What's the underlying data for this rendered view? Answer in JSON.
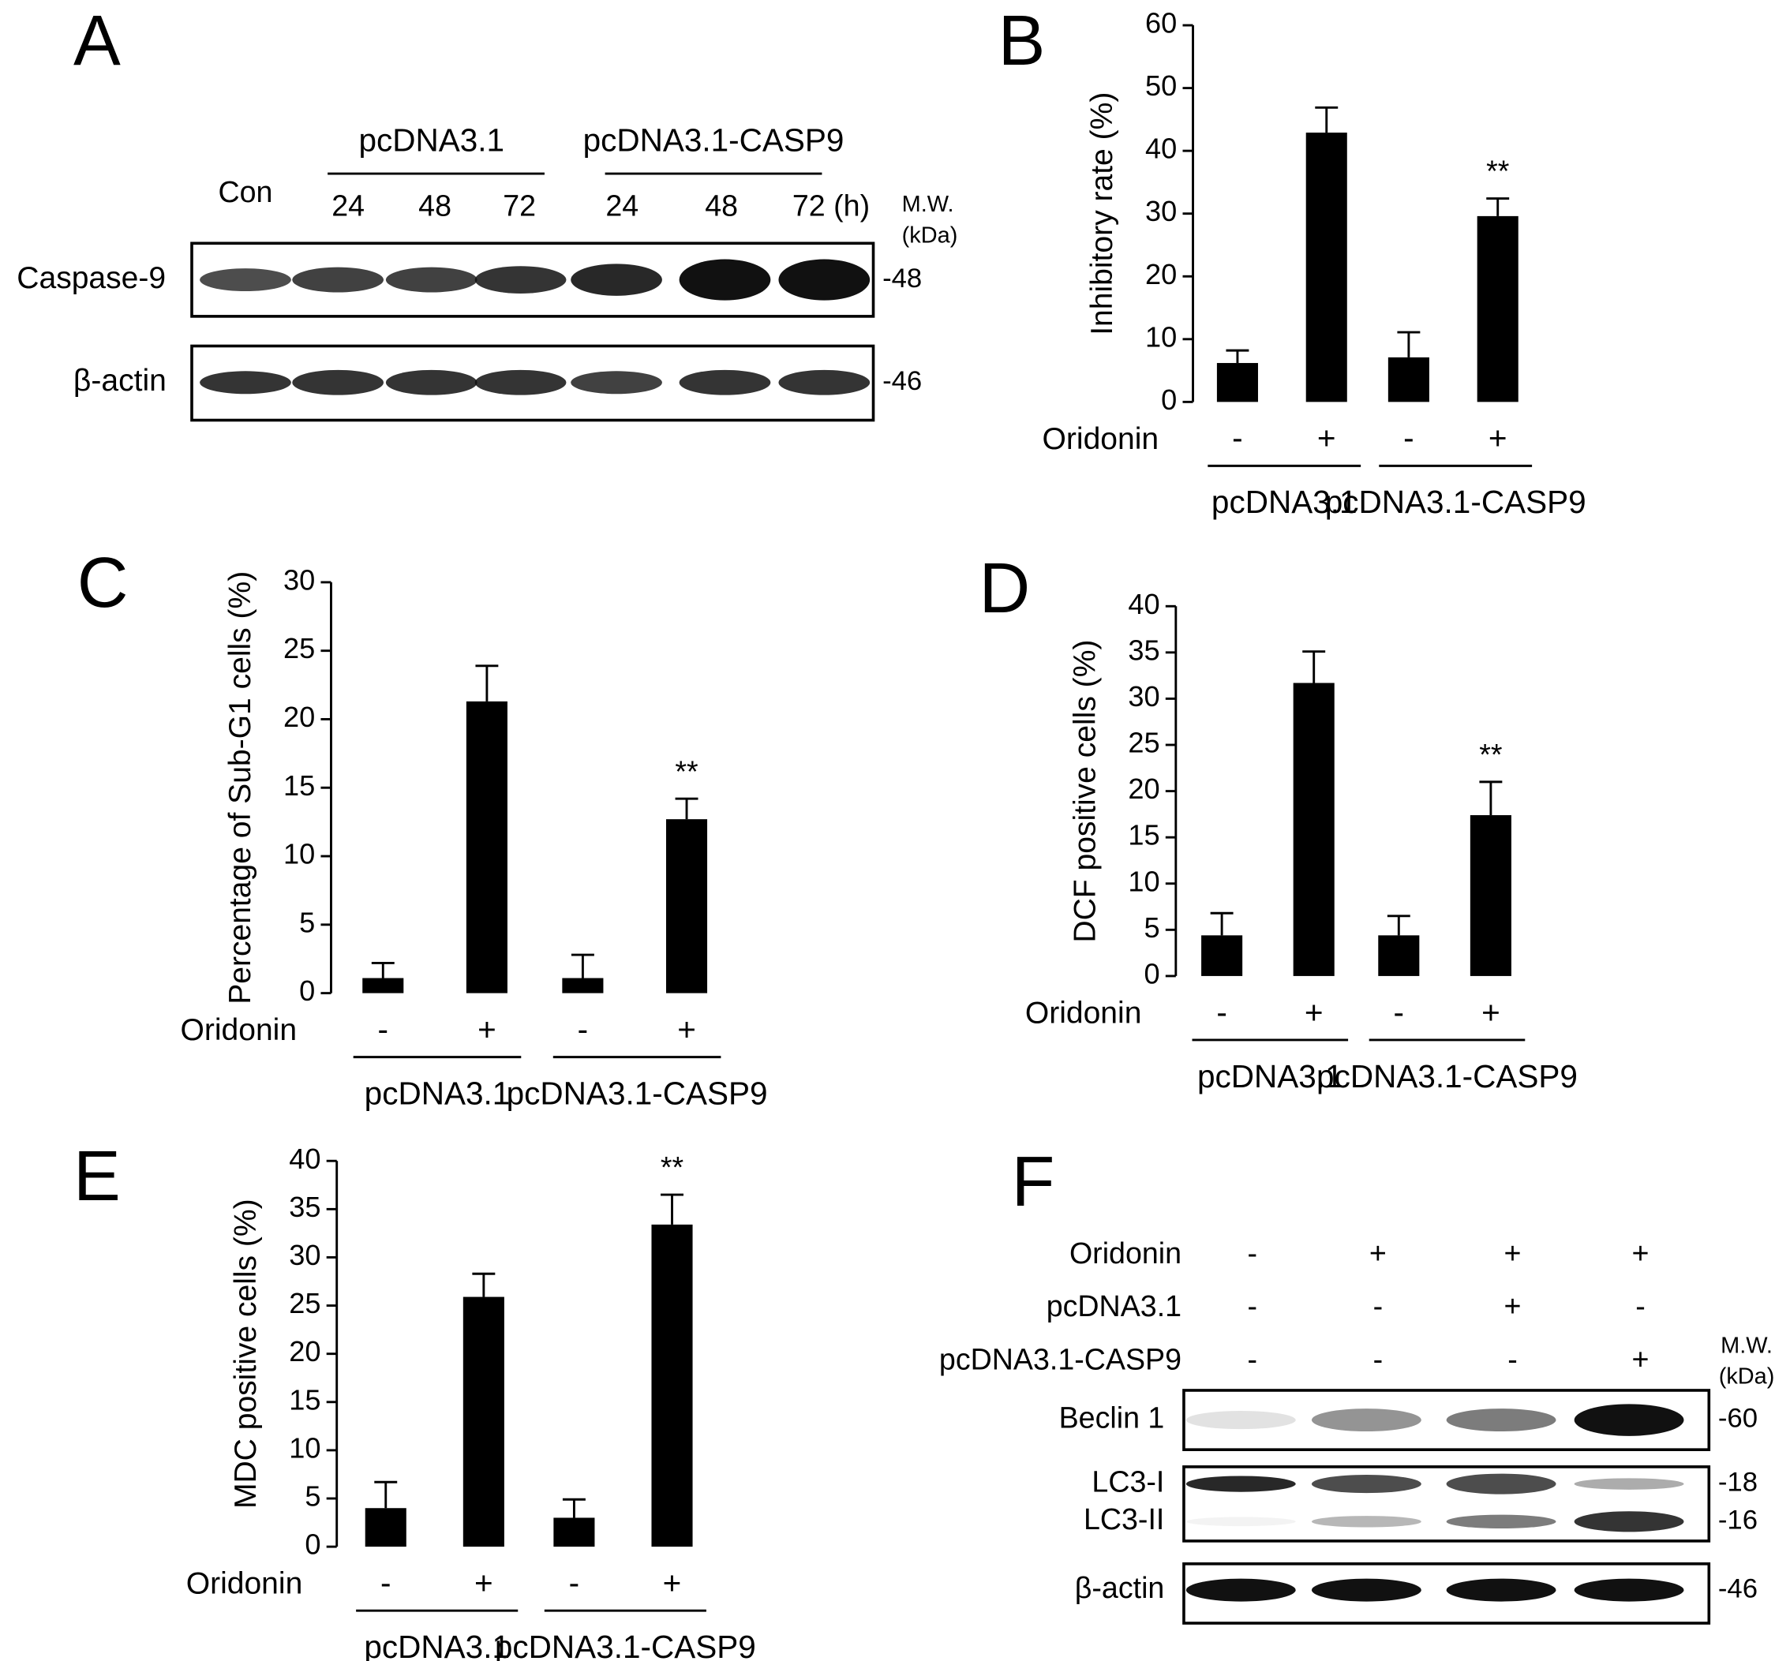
{
  "chart_data": [
    {
      "type": "bar",
      "panel": "B",
      "ylabel": "Inhibitory rate (%)",
      "row_label": "Oridonin",
      "categories": [
        "-",
        "+",
        "-",
        "+"
      ],
      "groups": [
        "pcDNA3.1",
        "pcDNA3.1-CASP9"
      ],
      "values": [
        6.2,
        42.9,
        7.1,
        29.6
      ],
      "errors": [
        2.0,
        4.0,
        4.0,
        2.8
      ],
      "annotations": [
        null,
        null,
        null,
        "**"
      ],
      "color": "#000000",
      "ylim": [
        0,
        60
      ],
      "yticks": [
        0,
        10,
        20,
        30,
        40,
        50,
        60
      ]
    },
    {
      "type": "bar",
      "panel": "C",
      "ylabel": "Percentage of Sub-G1 cells (%)",
      "row_label": "Oridonin",
      "categories": [
        "-",
        "+",
        "-",
        "+"
      ],
      "groups": [
        "pcDNA3.1",
        "pcDNA3.1-CASP9"
      ],
      "values": [
        1.1,
        21.3,
        1.1,
        12.7
      ],
      "errors": [
        1.1,
        2.6,
        1.7,
        1.5
      ],
      "annotations": [
        null,
        null,
        null,
        "**"
      ],
      "color": "#000000",
      "ylim": [
        0,
        30
      ],
      "yticks": [
        0,
        5,
        10,
        15,
        20,
        25,
        30
      ]
    },
    {
      "type": "bar",
      "panel": "D",
      "ylabel": "DCF positive cells (%)",
      "row_label": "Oridonin",
      "categories": [
        "-",
        "+",
        "-",
        "+"
      ],
      "groups": [
        "pcDNA3.1",
        "pcDNA3.1-CASP9"
      ],
      "values": [
        4.4,
        31.7,
        4.4,
        17.4
      ],
      "errors": [
        2.4,
        3.4,
        2.1,
        3.6
      ],
      "annotations": [
        null,
        null,
        null,
        "**"
      ],
      "color": "#000000",
      "ylim": [
        0,
        40
      ],
      "yticks": [
        0,
        5,
        10,
        15,
        20,
        25,
        30,
        35,
        40
      ]
    },
    {
      "type": "bar",
      "panel": "E",
      "ylabel": "MDC positive cells (%)",
      "row_label": "Oridonin",
      "categories": [
        "-",
        "+",
        "-",
        "+"
      ],
      "groups": [
        "pcDNA3.1",
        "pcDNA3.1-CASP9"
      ],
      "values": [
        4.0,
        25.9,
        3.0,
        33.4
      ],
      "errors": [
        2.7,
        2.4,
        1.9,
        3.1
      ],
      "annotations": [
        null,
        null,
        null,
        "**"
      ],
      "color": "#000000",
      "ylim": [
        0,
        40
      ],
      "yticks": [
        0,
        5,
        10,
        15,
        20,
        25,
        30,
        35,
        40
      ]
    }
  ],
  "panel_a": {
    "label": "A",
    "groups": [
      "pcDNA3.1",
      "pcDNA3.1-CASP9"
    ],
    "lanes": [
      "Con",
      "24",
      "48",
      "72",
      "24",
      "48",
      "72 (h)"
    ],
    "mw_header": [
      "M.W.",
      "(kDa)"
    ],
    "rows": [
      {
        "name": "Caspase-9",
        "mw": "-48"
      },
      {
        "name": "β-actin",
        "mw": "-46"
      }
    ]
  },
  "panel_f": {
    "label": "F",
    "conditions": [
      {
        "name": "Oridonin",
        "signs": [
          "-",
          "+",
          "+",
          "+"
        ]
      },
      {
        "name": "pcDNA3.1",
        "signs": [
          "-",
          "-",
          "+",
          "-"
        ]
      },
      {
        "name": "pcDNA3.1-CASP9",
        "signs": [
          "-",
          "-",
          "-",
          "+"
        ]
      }
    ],
    "mw_header": [
      "M.W.",
      "(kDa)"
    ],
    "rows": [
      {
        "name": "Beclin 1",
        "mw": "-60"
      },
      {
        "name": "LC3-I",
        "mw": "-18"
      },
      {
        "name": "LC3-II",
        "mw": "-16"
      },
      {
        "name": "β-actin",
        "mw": "-46"
      }
    ]
  }
}
